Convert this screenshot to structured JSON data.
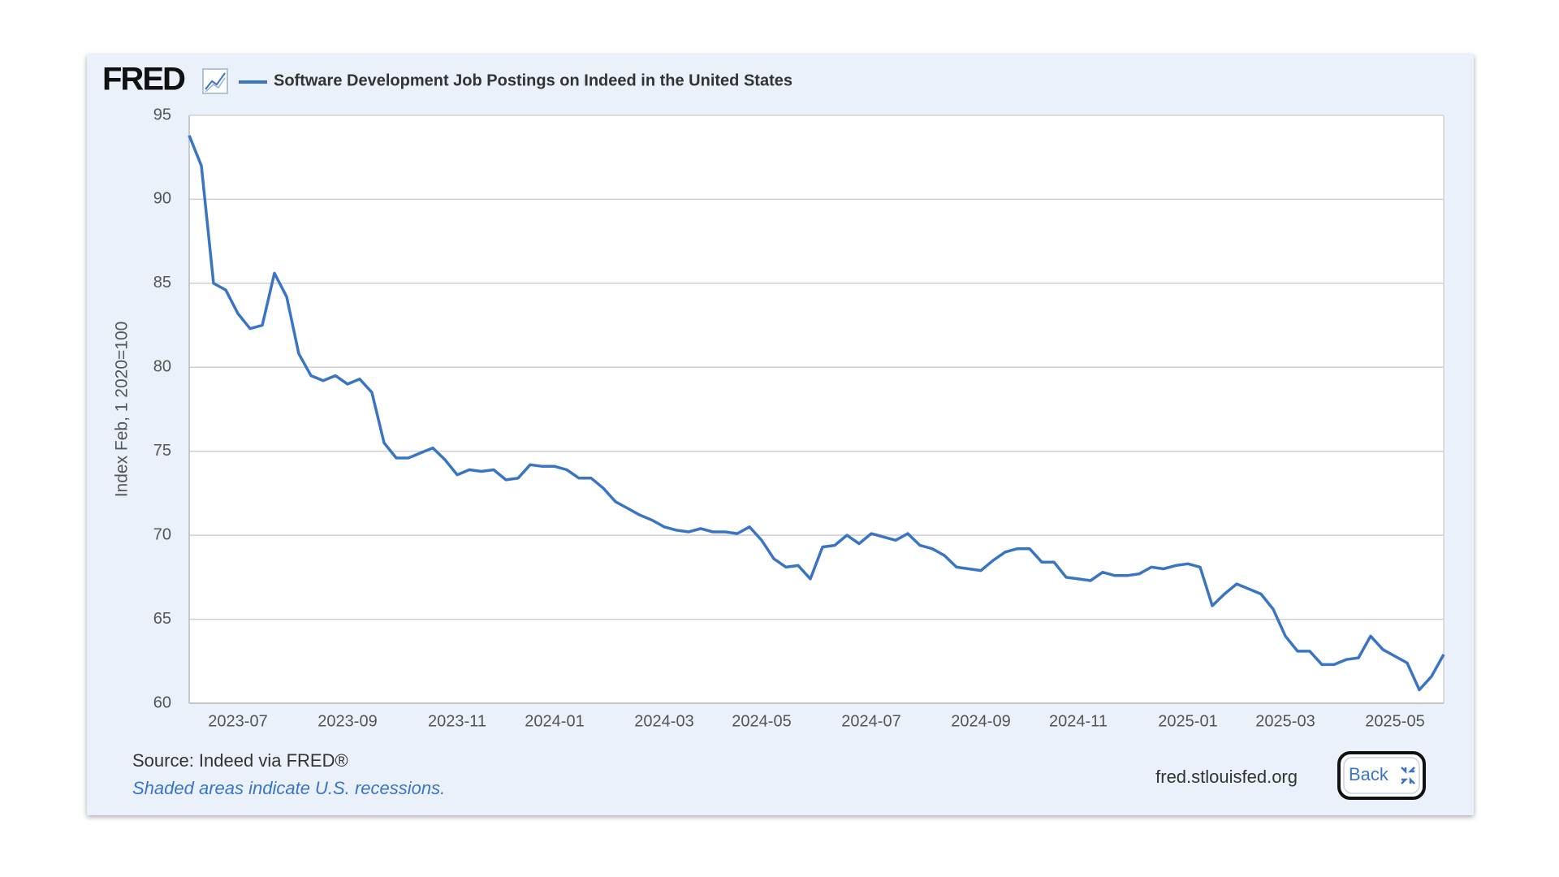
{
  "logo": "FRED",
  "source": "Source: Indeed via FRED®",
  "note": "Shaded areas indicate U.S. recessions.",
  "site": "fred.stlouisfed.org",
  "button": "Back",
  "chart_data": {
    "type": "line",
    "ylabel": "Index Feb, 1 2020=100",
    "x": [
      null,
      null,
      null,
      null,
      "2023-07",
      null,
      null,
      null,
      null,
      null,
      null,
      null,
      null,
      "2023-09",
      null,
      null,
      null,
      null,
      null,
      null,
      null,
      null,
      "2023-11",
      null,
      null,
      null,
      null,
      null,
      null,
      null,
      "2024-01",
      null,
      null,
      null,
      null,
      null,
      null,
      null,
      null,
      "2024-03",
      null,
      null,
      null,
      null,
      null,
      null,
      null,
      "2024-05",
      null,
      null,
      null,
      null,
      null,
      null,
      null,
      null,
      "2024-07",
      null,
      null,
      null,
      null,
      null,
      null,
      null,
      null,
      "2024-09",
      null,
      null,
      null,
      null,
      null,
      null,
      null,
      "2024-11",
      null,
      null,
      null,
      null,
      null,
      null,
      null,
      null,
      "2025-01",
      null,
      null,
      null,
      null,
      null,
      null,
      null,
      "2025-03",
      null,
      null,
      null,
      null,
      null,
      null,
      null,
      null,
      "2025-05",
      null,
      null,
      null,
      null
    ],
    "series": [
      {
        "name": "Software Development Job Postings on Indeed in the United States",
        "color": "#3a75c4",
        "values": [
          93.8,
          92,
          85,
          84.6,
          83.2,
          82.3,
          82.5,
          85.6,
          84.2,
          80.8,
          79.5,
          79.2,
          79.5,
          79.0,
          79.3,
          78.5,
          75.5,
          74.6,
          74.6,
          74.9,
          75.2,
          74.5,
          73.6,
          73.9,
          73.8,
          73.9,
          73.3,
          73.4,
          74.2,
          74.1,
          74.1,
          73.9,
          73.4,
          73.4,
          72.8,
          72.0,
          71.6,
          71.2,
          70.9,
          70.5,
          70.3,
          70.2,
          70.4,
          70.2,
          70.2,
          70.1,
          70.5,
          69.7,
          68.6,
          68.1,
          68.2,
          67.4,
          69.3,
          69.4,
          70.0,
          69.5,
          70.1,
          69.9,
          69.7,
          70.1,
          69.4,
          69.2,
          68.8,
          68.1,
          68.0,
          67.9,
          68.5,
          69.0,
          69.2,
          69.2,
          68.4,
          68.4,
          67.5,
          67.4,
          67.3,
          67.8,
          67.6,
          67.6,
          67.7,
          68.1,
          68.0,
          68.2,
          68.3,
          68.1,
          65.8,
          66.5,
          67.1,
          66.8,
          66.5,
          65.6,
          64.0,
          63.1,
          63.1,
          62.3,
          62.3,
          62.6,
          62.7,
          64.0,
          63.2,
          62.8,
          62.4,
          60.8,
          61.6,
          62.9
        ]
      }
    ],
    "ylim": [
      60,
      95
    ],
    "yticks": [
      60,
      65,
      70,
      75,
      80,
      85,
      90,
      95
    ],
    "grid": true
  }
}
